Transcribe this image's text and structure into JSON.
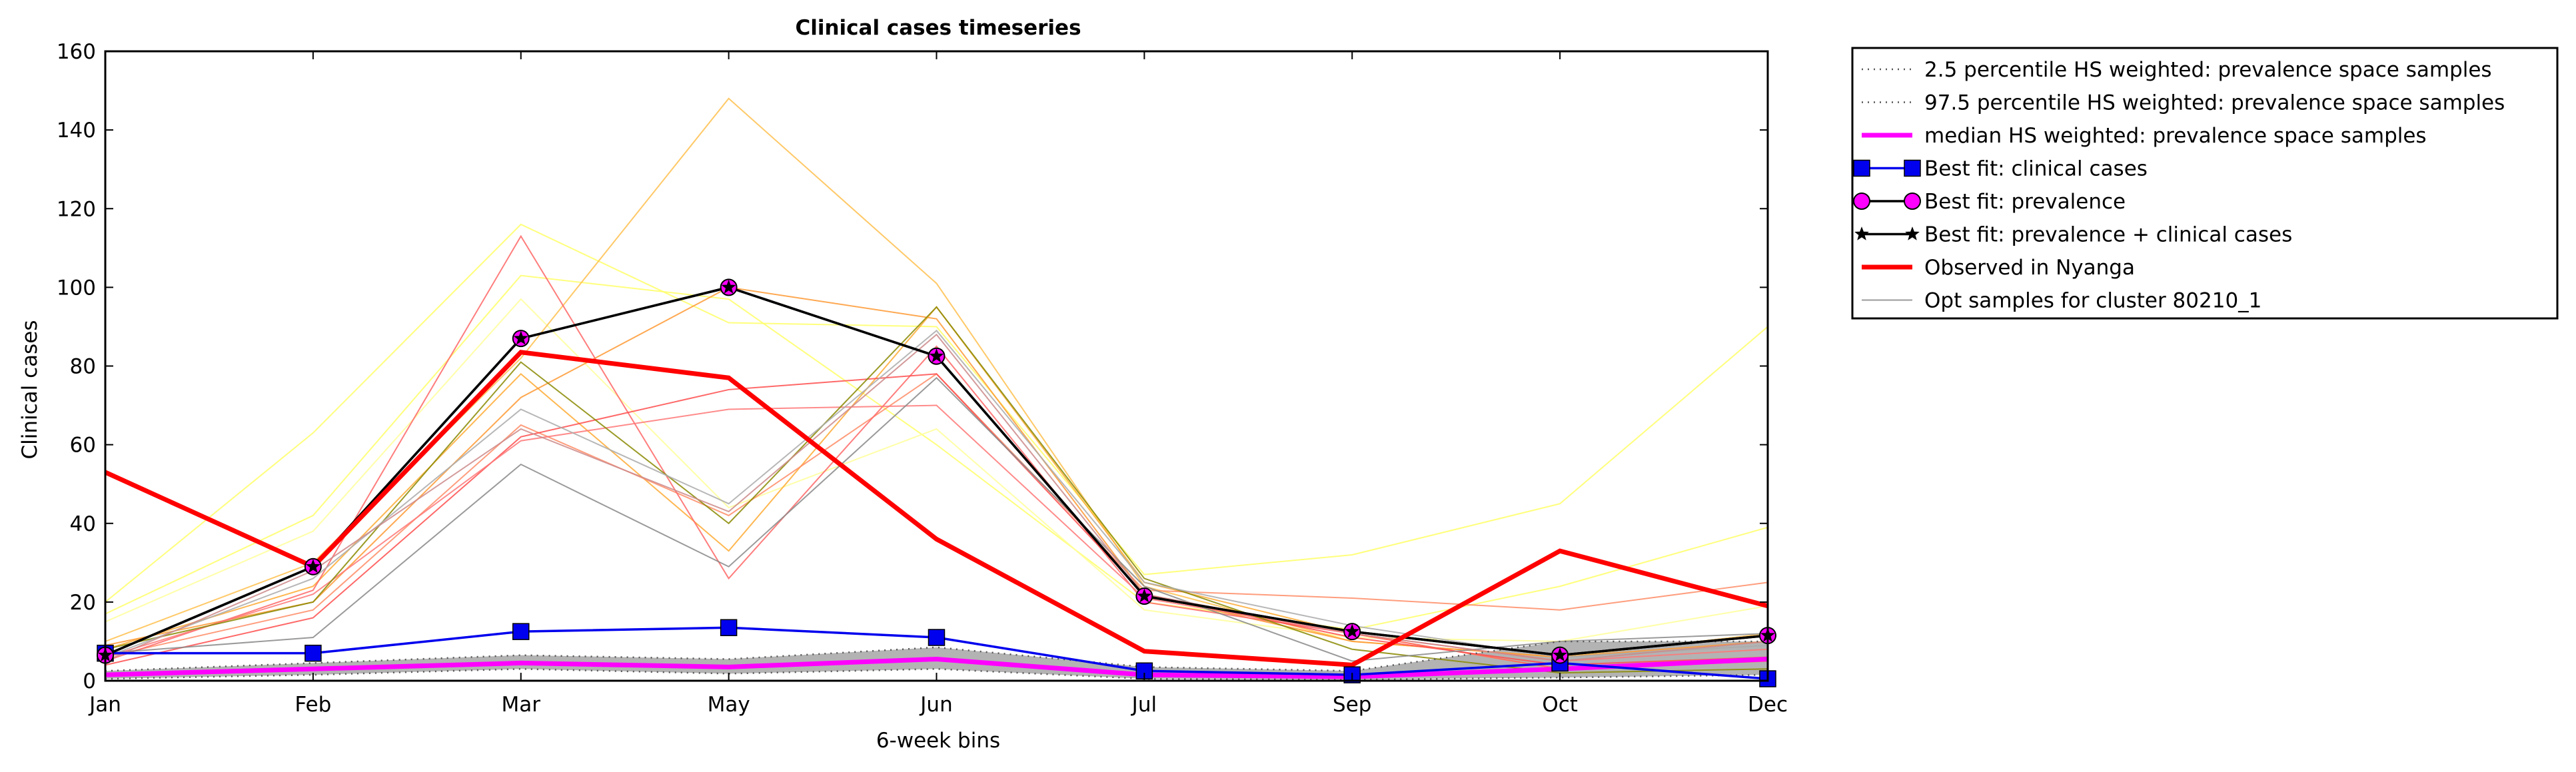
{
  "chart_data": {
    "type": "line",
    "title": "Clinical cases timeseries",
    "xlabel": "6-week bins",
    "ylabel": "Clinical cases",
    "categories": [
      "Jan",
      "Feb",
      "Mar",
      "May",
      "Jun",
      "Jul",
      "Sep",
      "Oct",
      "Dec"
    ],
    "ylim": [
      0,
      160
    ],
    "yticks": [
      0,
      20,
      40,
      60,
      80,
      100,
      120,
      140,
      160
    ],
    "grid": false,
    "legend_position": "outside-right-top",
    "band": {
      "lower": [
        0.5,
        1.5,
        3.0,
        1.8,
        3.0,
        0.5,
        0.3,
        0.8,
        1.5
      ],
      "upper": [
        2.5,
        4.5,
        6.5,
        5.5,
        8.5,
        3.5,
        2.5,
        10.0,
        10.0
      ],
      "color": "#999999"
    },
    "sample_lines": [
      {
        "color": "#ffff66",
        "values": [
          20,
          63,
          116,
          91,
          90,
          27,
          32,
          45,
          90
        ]
      },
      {
        "color": "#ffff66",
        "values": [
          17,
          42,
          103,
          97,
          60,
          20,
          13,
          24,
          39
        ]
      },
      {
        "color": "#ffff99",
        "values": [
          15,
          38,
          97,
          44,
          64,
          18,
          11,
          10,
          19
        ]
      },
      {
        "color": "#ffc04d",
        "values": [
          10,
          30,
          82,
          148,
          101,
          24,
          10,
          6,
          12
        ]
      },
      {
        "color": "#ffaa33",
        "values": [
          8,
          24,
          78,
          33,
          95,
          25,
          12,
          3,
          5
        ]
      },
      {
        "color": "#ff9933",
        "values": [
          9,
          20,
          72,
          100,
          92,
          22,
          10,
          6,
          10
        ]
      },
      {
        "color": "#ff8c66",
        "values": [
          6,
          18,
          65,
          42,
          78,
          23,
          21,
          18,
          25
        ]
      },
      {
        "color": "#ff6666",
        "values": [
          5,
          23,
          113,
          26,
          85,
          20,
          12,
          3,
          5
        ]
      },
      {
        "color": "#ff4d4d",
        "values": [
          4,
          16,
          62,
          74,
          78,
          22,
          11,
          4,
          6
        ]
      },
      {
        "color": "#ff7777",
        "values": [
          6,
          22,
          61,
          69,
          70,
          21,
          12,
          5,
          8
        ]
      },
      {
        "color": "#888800",
        "values": [
          8,
          20,
          81,
          40,
          95,
          26,
          8,
          2,
          3
        ]
      },
      {
        "color": "#888888",
        "values": [
          7,
          11,
          55,
          29,
          77,
          24,
          5,
          10,
          12
        ]
      },
      {
        "color": "#aaaaaa",
        "values": [
          6,
          26,
          69,
          45,
          89,
          25,
          14,
          6,
          9
        ]
      },
      {
        "color": "#cc8888",
        "values": [
          5,
          28,
          64,
          43,
          88,
          22,
          12,
          5,
          10
        ]
      }
    ],
    "series": [
      {
        "name": "2.5 percentile HS weighted: prevalence space samples",
        "style": "dotted",
        "color": "#555555",
        "values": [
          0.5,
          1.5,
          3.0,
          1.8,
          3.0,
          0.5,
          0.3,
          0.8,
          1.5
        ]
      },
      {
        "name": "97.5 percentile HS weighted: prevalence space samples",
        "style": "dotted",
        "color": "#555555",
        "values": [
          2.5,
          4.5,
          6.5,
          5.5,
          8.5,
          3.5,
          2.5,
          10.0,
          10.0
        ]
      },
      {
        "name": "median HS weighted: prevalence space samples",
        "style": "solid",
        "color": "#ff00ff",
        "width": 7,
        "values": [
          1.5,
          3.0,
          4.5,
          3.5,
          5.5,
          1.5,
          1.0,
          3.0,
          5.5
        ]
      },
      {
        "name": "Best fit: clinical cases",
        "style": "solid",
        "color": "#0000ee",
        "marker": "square",
        "values": [
          7,
          7,
          12.5,
          13.5,
          11,
          2.5,
          1.5,
          4.5,
          0.5
        ]
      },
      {
        "name": "Best fit: prevalence",
        "style": "solid",
        "color": "#000000",
        "marker": "circle",
        "markerColor": "#ff00ff",
        "values": [
          6.5,
          29,
          87,
          100,
          82.5,
          21.5,
          12.5,
          6.5,
          11.5
        ]
      },
      {
        "name": "Best fit: prevalence + clinical cases",
        "style": "solid",
        "color": "#000000",
        "marker": "star",
        "values": [
          6.5,
          29,
          87,
          100,
          82.5,
          21.5,
          12.5,
          6.5,
          11.5
        ]
      },
      {
        "name": "Observed in Nyanga",
        "style": "solid",
        "color": "#ff0000",
        "width": 7,
        "values": [
          53,
          29,
          83.5,
          77,
          36,
          7.5,
          4,
          33,
          19
        ]
      },
      {
        "name": "Opt samples for cluster 80210_1",
        "style": "solid",
        "color": "#999999",
        "width": 2,
        "legend_only": true
      }
    ]
  }
}
